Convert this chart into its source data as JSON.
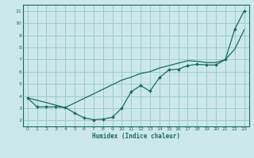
{
  "background_color": "#cce8e8",
  "grid_color": "#99cccc",
  "line_color": "#1a6b5a",
  "x_label": "Humidex (Indice chaleur)",
  "xlim": [
    -0.5,
    23.5
  ],
  "ylim": [
    1.5,
    11.5
  ],
  "yticks": [
    2,
    3,
    4,
    5,
    6,
    7,
    8,
    9,
    10,
    11
  ],
  "xticks": [
    0,
    1,
    2,
    3,
    4,
    5,
    6,
    7,
    8,
    9,
    10,
    11,
    12,
    13,
    14,
    15,
    16,
    17,
    18,
    19,
    20,
    21,
    22,
    23
  ],
  "curve1_x": [
    0,
    1,
    2,
    3,
    4,
    5,
    6,
    7,
    8,
    9,
    10,
    11,
    12,
    13,
    14,
    15,
    16,
    17,
    18,
    19,
    20,
    21,
    22,
    23
  ],
  "curve1_y": [
    3.85,
    3.1,
    3.1,
    3.1,
    3.05,
    2.6,
    2.2,
    2.05,
    2.1,
    2.25,
    3.0,
    4.35,
    4.85,
    4.4,
    5.5,
    6.15,
    6.2,
    6.5,
    6.6,
    6.55,
    6.55,
    7.0,
    9.5,
    11.0
  ],
  "curve2_x": [
    0,
    4,
    10,
    11,
    12,
    13,
    14,
    15,
    16,
    17,
    18,
    19,
    20,
    21,
    22,
    23
  ],
  "curve2_y": [
    3.85,
    3.05,
    5.3,
    5.55,
    5.85,
    6.0,
    6.3,
    6.5,
    6.7,
    6.9,
    6.85,
    6.75,
    6.75,
    7.0,
    7.85,
    9.45
  ]
}
